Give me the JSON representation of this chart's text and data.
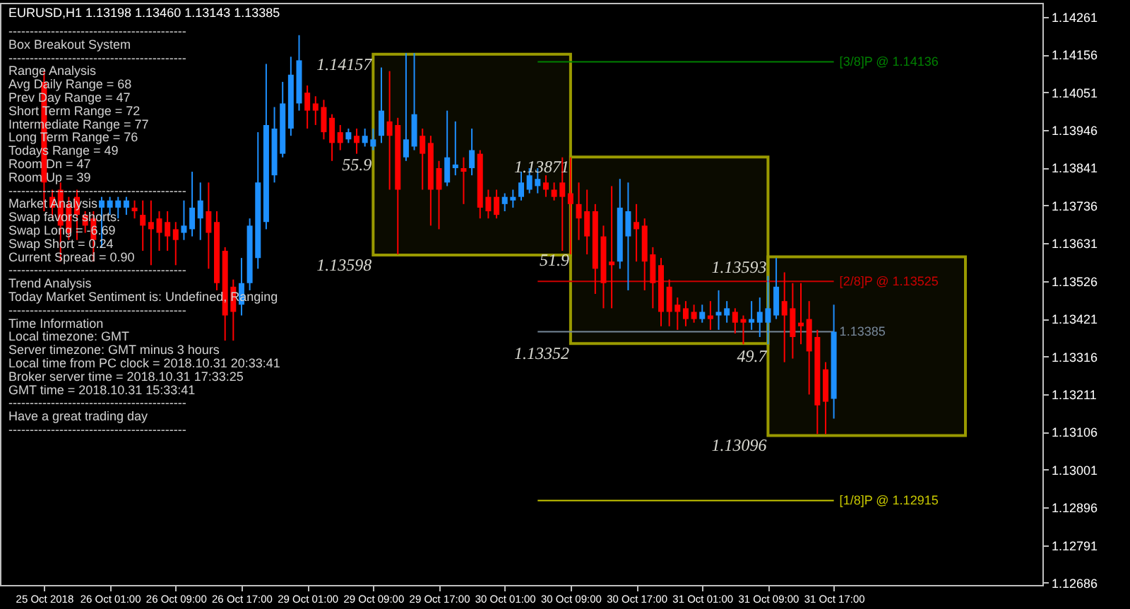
{
  "chart_data": {
    "type": "candlestick",
    "title": "EURUSD,H1  1.13198 1.13460 1.13143 1.13385",
    "categories": [
      "25 Oct 2018",
      null,
      null,
      null,
      null,
      null,
      null,
      null,
      "26 Oct 01:00",
      null,
      null,
      null,
      null,
      null,
      null,
      null,
      "26 Oct 09:00",
      null,
      null,
      null,
      null,
      null,
      null,
      null,
      "26 Oct 17:00",
      null,
      null,
      null,
      null,
      null,
      null,
      null,
      "29 Oct 01:00",
      null,
      null,
      null,
      null,
      null,
      null,
      null,
      "29 Oct 09:00",
      null,
      null,
      null,
      null,
      null,
      null,
      null,
      "29 Oct 17:00",
      null,
      null,
      null,
      null,
      null,
      null,
      null,
      "30 Oct 01:00",
      null,
      null,
      null,
      null,
      null,
      null,
      null,
      "30 Oct 09:00",
      null,
      null,
      null,
      null,
      null,
      null,
      null,
      "30 Oct 17:00",
      null,
      null,
      null,
      null,
      null,
      null,
      null,
      "31 Oct 01:00",
      null,
      null,
      null,
      null,
      null,
      null,
      null,
      "31 Oct 09:00",
      null,
      null,
      null,
      null,
      null,
      null,
      null,
      "31 Oct 17:00",
      null,
      null,
      null,
      null,
      null,
      null,
      null,
      null,
      null,
      null,
      null,
      null,
      null,
      null,
      null,
      null,
      null,
      null,
      null,
      null,
      null,
      null,
      null,
      null
    ],
    "ohlc": [
      [
        1.1408,
        1.1411,
        1.1372,
        1.138
      ],
      [
        1.1376,
        1.1378,
        1.137,
        1.1373
      ],
      [
        1.1378,
        1.138,
        1.1358,
        1.1368
      ],
      [
        1.1374,
        1.1376,
        1.1364,
        1.1366
      ],
      [
        1.1376,
        1.1378,
        1.1364,
        1.1371
      ],
      [
        1.1371,
        1.1372,
        1.1366,
        1.1368
      ],
      [
        1.137,
        1.1372,
        1.1358,
        1.1364
      ],
      [
        1.1373,
        1.1376,
        1.1362,
        1.1375
      ],
      [
        1.1373,
        1.1376,
        1.1371,
        1.1375
      ],
      [
        1.1373,
        1.1376,
        1.137,
        1.1375
      ],
      [
        1.1373,
        1.1376,
        1.1371,
        1.1375
      ],
      [
        1.1373,
        1.1375,
        1.137,
        1.1372
      ],
      [
        1.1371,
        1.1375,
        1.1361,
        1.1368
      ],
      [
        1.1369,
        1.1375,
        1.1357,
        1.1367
      ],
      [
        1.137,
        1.1372,
        1.1361,
        1.1366
      ],
      [
        1.1369,
        1.1372,
        1.1361,
        1.1365
      ],
      [
        1.1367,
        1.1369,
        1.1357,
        1.1364
      ],
      [
        1.1366,
        1.1375,
        1.1364,
        1.1368
      ],
      [
        1.1367,
        1.1383,
        1.1365,
        1.1373
      ],
      [
        1.137,
        1.138,
        1.1364,
        1.1375
      ],
      [
        1.1372,
        1.138,
        1.1356,
        1.1366
      ],
      [
        1.1369,
        1.1372,
        1.135,
        1.1352
      ],
      [
        1.1361,
        1.1362,
        1.1336,
        1.1343
      ],
      [
        1.1351,
        1.1353,
        1.1336,
        1.1344
      ],
      [
        1.1346,
        1.1359,
        1.1343,
        1.1352
      ],
      [
        1.1352,
        1.137,
        1.135,
        1.1368
      ],
      [
        1.1359,
        1.1394,
        1.1356,
        1.138
      ],
      [
        1.1369,
        1.1413,
        1.1367,
        1.1396
      ],
      [
        1.1382,
        1.1401,
        1.138,
        1.1395
      ],
      [
        1.1388,
        1.1408,
        1.1387,
        1.1402
      ],
      [
        1.1395,
        1.1415,
        1.1393,
        1.141
      ],
      [
        1.1402,
        1.1421,
        1.14,
        1.1414
      ],
      [
        1.1405,
        1.1407,
        1.1395,
        1.14
      ],
      [
        1.1402,
        1.1404,
        1.1396,
        1.14
      ],
      [
        1.1401,
        1.1403,
        1.1392,
        1.1394
      ],
      [
        1.1398,
        1.1399,
        1.1386,
        1.1391
      ],
      [
        1.1394,
        1.1396,
        1.1389,
        1.1391
      ],
      [
        1.1392,
        1.1395,
        1.1391,
        1.1394
      ],
      [
        1.1393,
        1.1395,
        1.1388,
        1.1391
      ],
      [
        1.1391,
        1.1395,
        1.139,
        1.1393
      ],
      [
        1.139,
        1.1395,
        1.1389,
        1.1392
      ],
      [
        1.1393,
        1.1412,
        1.1391,
        1.14
      ],
      [
        1.1397,
        1.1411,
        1.1378,
        1.1393
      ],
      [
        1.1396,
        1.1398,
        1.136,
        1.1378
      ],
      [
        1.1387,
        1.1416,
        1.1386,
        1.1392
      ],
      [
        1.139,
        1.1416,
        1.1389,
        1.1399
      ],
      [
        1.1393,
        1.1395,
        1.1378,
        1.1388
      ],
      [
        1.1391,
        1.1393,
        1.1368,
        1.1378
      ],
      [
        1.1384,
        1.1386,
        1.1367,
        1.1378
      ],
      [
        1.138,
        1.14,
        1.1379,
        1.1387
      ],
      [
        1.1384,
        1.1397,
        1.1382,
        1.1385
      ],
      [
        1.1384,
        1.1387,
        1.1374,
        1.1383
      ],
      [
        1.1384,
        1.1395,
        1.1382,
        1.1389
      ],
      [
        1.1388,
        1.1389,
        1.137,
        1.1373
      ],
      [
        1.1376,
        1.1378,
        1.137,
        1.1372
      ],
      [
        1.1376,
        1.1378,
        1.137,
        1.1371
      ],
      [
        1.1374,
        1.1377,
        1.1372,
        1.1376
      ],
      [
        1.1375,
        1.1378,
        1.1373,
        1.1376
      ],
      [
        1.1376,
        1.1383,
        1.1375,
        1.138
      ],
      [
        1.1378,
        1.1384,
        1.1377,
        1.1382
      ],
      [
        1.1379,
        1.1384,
        1.1377,
        1.1381
      ],
      [
        1.138,
        1.1382,
        1.1376,
        1.1378
      ],
      [
        1.1378,
        1.138,
        1.1375,
        1.1376
      ],
      [
        1.138,
        1.1387,
        1.1361,
        1.1376
      ],
      [
        1.1377,
        1.1387,
        1.136,
        1.1374
      ],
      [
        1.1374,
        1.138,
        1.1364,
        1.137
      ],
      [
        1.1372,
        1.1378,
        1.136,
        1.1365
      ],
      [
        1.1372,
        1.1374,
        1.1349,
        1.1356
      ],
      [
        1.1365,
        1.1368,
        1.1345,
        1.1352
      ],
      [
        1.1358,
        1.1379,
        1.1345,
        1.1357
      ],
      [
        1.1358,
        1.1381,
        1.1356,
        1.1373
      ],
      [
        1.1365,
        1.138,
        1.135,
        1.1372
      ],
      [
        1.1369,
        1.1374,
        1.1358,
        1.1367
      ],
      [
        1.1368,
        1.137,
        1.135,
        1.1358
      ],
      [
        1.136,
        1.1362,
        1.1345,
        1.1352
      ],
      [
        1.1357,
        1.1359,
        1.134,
        1.1344
      ],
      [
        1.1351,
        1.1353,
        1.134,
        1.1344
      ],
      [
        1.1346,
        1.1348,
        1.1339,
        1.1344
      ],
      [
        1.1345,
        1.1347,
        1.134,
        1.1342
      ],
      [
        1.1344,
        1.1346,
        1.1341,
        1.1342
      ],
      [
        1.1342,
        1.1346,
        1.1341,
        1.1344
      ],
      [
        1.1343,
        1.1347,
        1.1339,
        1.1342
      ],
      [
        1.1343,
        1.135,
        1.1339,
        1.1344
      ],
      [
        1.1343,
        1.1347,
        1.1341,
        1.1345
      ],
      [
        1.1344,
        1.1345,
        1.1338,
        1.1341
      ],
      [
        1.1342,
        1.1343,
        1.1335,
        1.1341
      ],
      [
        1.1341,
        1.1347,
        1.1339,
        1.1342
      ],
      [
        1.1341,
        1.1348,
        1.1337,
        1.1344
      ],
      [
        1.1341,
        1.1354,
        1.1335,
        1.1345
      ],
      [
        1.1343,
        1.1359,
        1.1342,
        1.1351
      ],
      [
        1.1347,
        1.1355,
        1.133,
        1.1343
      ],
      [
        1.1345,
        1.1352,
        1.1331,
        1.1337
      ],
      [
        1.1341,
        1.1352,
        1.1335,
        1.134
      ],
      [
        1.1342,
        1.1347,
        1.1321,
        1.1333
      ],
      [
        1.1337,
        1.1339,
        1.131,
        1.1318
      ],
      [
        1.1328,
        1.133,
        1.131,
        1.1319
      ],
      [
        1.13198,
        1.1346,
        1.13143,
        1.13385
      ],
      null,
      null,
      null,
      null,
      null,
      null,
      null,
      null,
      null,
      null,
      null,
      null,
      null,
      null,
      null,
      null,
      null,
      null,
      null,
      null,
      null,
      null,
      null,
      null
    ],
    "colors": [
      "#ff0000",
      "#ff0000",
      "#ff0000",
      "#ff0000",
      "#ff0000",
      "#ff0000",
      "#ff0000",
      "#1e90ff",
      "#1e90ff",
      "#1e90ff",
      "#1e90ff",
      "#ff0000",
      "#ff0000",
      "#ff0000",
      "#ff0000",
      "#ff0000",
      "#ff0000",
      "#1e90ff",
      "#1e90ff",
      "#1e90ff",
      "#ff0000",
      "#ff0000",
      "#ff0000",
      "#ff0000",
      "#1e90ff",
      "#1e90ff",
      "#1e90ff",
      "#1e90ff",
      "#1e90ff",
      "#1e90ff",
      "#1e90ff",
      "#1e90ff",
      "#ff0000",
      "#ff0000",
      "#ff0000",
      "#ff0000",
      "#ff0000",
      "#1e90ff",
      "#ff0000",
      "#1e90ff",
      "#1e90ff",
      "#1e90ff",
      "#ff0000",
      "#ff0000",
      "#1e90ff",
      "#1e90ff",
      "#ff0000",
      "#ff0000",
      "#ff0000",
      "#1e90ff",
      "#1e90ff",
      "#ff0000",
      "#1e90ff",
      "#ff0000",
      "#ff0000",
      "#ff0000",
      "#1e90ff",
      "#1e90ff",
      "#1e90ff",
      "#1e90ff",
      "#1e90ff",
      "#ff0000",
      "#ff0000",
      "#ff0000",
      "#ff0000",
      "#ff0000",
      "#ff0000",
      "#ff0000",
      "#ff0000",
      "#ff0000",
      "#1e90ff",
      "#1e90ff",
      "#ff0000",
      "#ff0000",
      "#ff0000",
      "#ff0000",
      "#ff0000",
      "#ff0000",
      "#ff0000",
      "#ff0000",
      "#1e90ff",
      "#ff0000",
      "#1e90ff",
      "#1e90ff",
      "#ff0000",
      "#ff0000",
      "#1e90ff",
      "#1e90ff",
      "#1e90ff",
      "#1e90ff",
      "#ff0000",
      "#ff0000",
      "#ff0000",
      "#ff0000",
      "#ff0000",
      "#ff0000",
      "#1e90ff",
      null,
      null,
      null,
      null,
      null,
      null,
      null,
      null,
      null,
      null,
      null,
      null,
      null,
      null,
      null,
      null,
      null,
      null,
      null,
      null,
      null,
      null,
      null,
      null
    ],
    "bands": [
      {
        "axis": "y",
        "from": 1.13598,
        "to": 1.14157,
        "label": "55.9",
        "color": "#9a9a00"
      },
      {
        "axis": "y",
        "from": 1.13352,
        "to": 1.13871,
        "label": "51.9",
        "color": "#9a9a00"
      },
      {
        "axis": "y",
        "from": 1.13096,
        "to": 1.13593,
        "label": "49.7",
        "color": "#9a9a00"
      }
    ],
    "ylim": [
      1.1268,
      1.143
    ],
    "yticks": [
      1.14261,
      1.14156,
      1.14051,
      1.13946,
      1.13841,
      1.13736,
      1.13631,
      1.13526,
      1.13421,
      1.13316,
      1.13211,
      1.13106,
      1.13001,
      1.12896,
      1.12791,
      1.12686
    ],
    "ref_lines": [
      {
        "axis": "y",
        "value": 1.14136,
        "label": "[3/8]P @ 1.14136",
        "color": "#008000"
      },
      {
        "axis": "y",
        "value": 1.13525,
        "label": "[2/8]P @ 1.13525",
        "color": "#cc0000"
      },
      {
        "axis": "y",
        "value": 1.12915,
        "label": "[1/8]P @ 1.12915",
        "color": "#c8c800"
      },
      {
        "axis": "y",
        "value": 1.13385,
        "label": "1.13385",
        "color": "#778899"
      }
    ],
    "annotations": [
      "------------------------------------------",
      "Box Breakout System",
      "------------------------------------------",
      "Range Analysis",
      "Avg Daily Range = 68",
      "Prev Day Range = 47",
      "Short Term Range = 72",
      "Intermediate Range = 77",
      "Long Term Range = 76",
      "Todays Range = 49",
      "Room Dn = 47",
      "Room Up = 39",
      "------------------------------------------",
      "Market Analysis",
      "Swap favors shorts.",
      "Swap Long       = -6.69",
      "Swap Short      = 0.24",
      "Current Spread = 0.90",
      "------------------------------------------",
      "Trend Analysis",
      "Today Market Sentiment is: Undefined, Ranging",
      "------------------------------------------",
      "Time Information",
      "Local timezone: GMT",
      "Server timezone: GMT minus 3 hours",
      "Local time from PC clock = 2018.10.31 20:33:41",
      "Broker server time       =  2018.10.31 17:33:25",
      "GMT time                 =  2018.10.31 15:33:41",
      "------------------------------------------",
      "Have a great trading day",
      "------------------------------------------",
      "1.14157",
      "1.13598",
      "1.13871",
      "1.13352",
      "1.13593",
      "1.13096"
    ]
  }
}
